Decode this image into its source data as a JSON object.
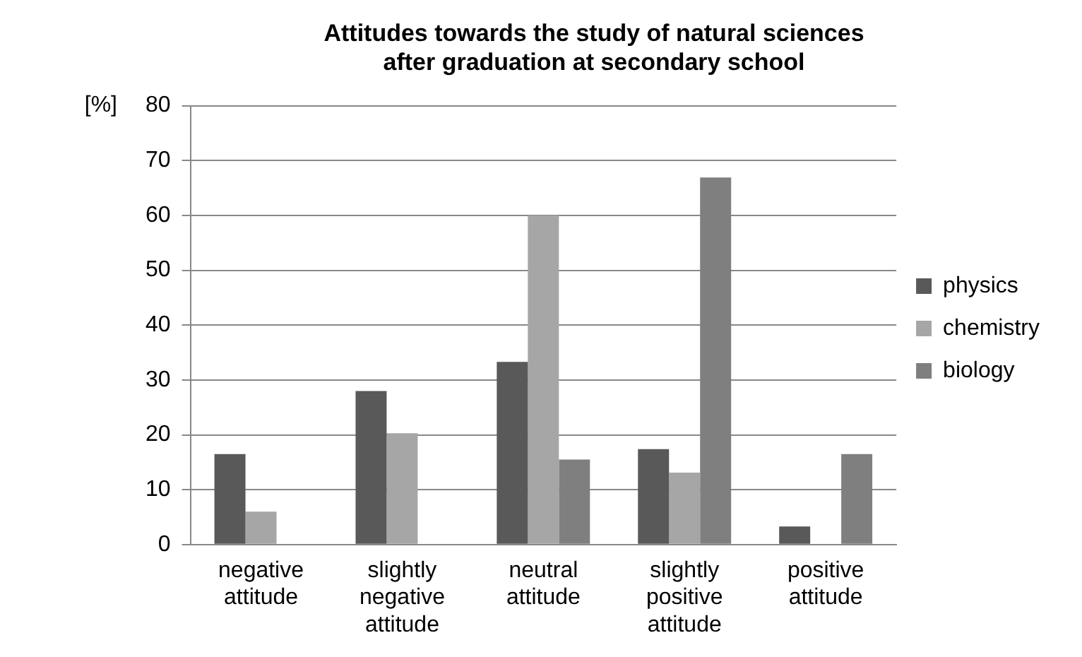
{
  "chart_data": {
    "type": "bar",
    "title": "Attitudes towards the study of natural sciences\nafter graduation at secondary school",
    "ylabel": "[%]",
    "categories": [
      "negative attitude",
      "slightly negative attitude",
      "neutral attitude",
      "slightly positive attitude",
      "positive attitude"
    ],
    "series": [
      {
        "name": "physics",
        "color": "#595959",
        "values": [
          16.5,
          28,
          33.3,
          17.4,
          3.3
        ]
      },
      {
        "name": "chemistry",
        "color": "#a6a6a6",
        "values": [
          6,
          20.3,
          60,
          13.1,
          0
        ]
      },
      {
        "name": "biology",
        "color": "#7f7f7f",
        "values": [
          0,
          0,
          15.5,
          66.9,
          16.5
        ]
      }
    ],
    "ylim": [
      0,
      80
    ],
    "yticks": [
      0,
      10,
      20,
      30,
      40,
      50,
      60,
      70,
      80
    ],
    "grid": "y",
    "legend": "right"
  }
}
